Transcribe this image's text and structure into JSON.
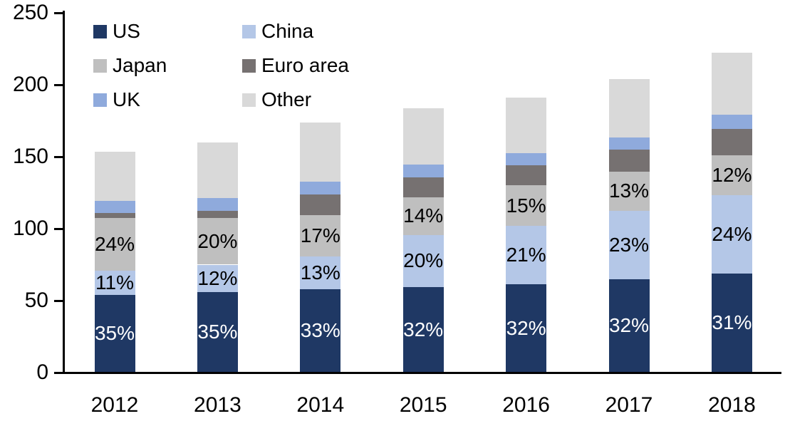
{
  "chart_data": {
    "type": "bar",
    "stacked": true,
    "title": "",
    "xlabel": "",
    "ylabel": "",
    "categories": [
      "2012",
      "2013",
      "2014",
      "2015",
      "2016",
      "2017",
      "2018"
    ],
    "series": [
      {
        "name": "US",
        "color": "#1F3864",
        "values": [
          54,
          56,
          58,
          59.5,
          61.5,
          65,
          69
        ],
        "segment_labels": [
          "35%",
          "35%",
          "33%",
          "32%",
          "32%",
          "32%",
          "31%"
        ],
        "label_color": "#FFFFFF"
      },
      {
        "name": "China",
        "color": "#B4C7E7",
        "values": [
          17,
          19,
          22.5,
          36,
          40.5,
          47.5,
          54.5
        ],
        "segment_labels": [
          "11%",
          "12%",
          "13%",
          "20%",
          "21%",
          "23%",
          "24%"
        ],
        "label_color": "#000000"
      },
      {
        "name": "Japan",
        "color": "#BFBFBF",
        "values": [
          36.5,
          32.5,
          29,
          26.5,
          28,
          27,
          27.5
        ],
        "segment_labels": [
          "24%",
          "20%",
          "17%",
          "14%",
          "15%",
          "13%",
          "12%"
        ],
        "label_color": "#000000"
      },
      {
        "name": "Euro area",
        "color": "#767171",
        "values": [
          3.5,
          5,
          14.5,
          13.5,
          14,
          15.5,
          18.5
        ],
        "segment_labels": null,
        "label_color": "#000000"
      },
      {
        "name": "UK",
        "color": "#8FAADC",
        "values": [
          8.5,
          9,
          8.5,
          9,
          8.5,
          8.5,
          9.5
        ],
        "segment_labels": null,
        "label_color": "#000000"
      },
      {
        "name": "Other",
        "color": "#D9D9D9",
        "values": [
          34,
          38.5,
          41.5,
          39,
          38.5,
          40.5,
          43.5
        ],
        "segment_labels": null,
        "label_color": "#000000"
      }
    ],
    "totals_approx": [
      153.5,
      160,
      174,
      183.5,
      191,
      204,
      222.5
    ],
    "ylim": [
      0,
      250
    ],
    "yticks": [
      "0",
      "50",
      "100",
      "150",
      "200",
      "250"
    ],
    "grid": false,
    "axis_color": "#000000",
    "background": "#FFFFFF",
    "legend_position": "top-left-inside",
    "legend_columns": [
      [
        "US",
        "Japan",
        "UK"
      ],
      [
        "China",
        "Euro area",
        "Other"
      ]
    ]
  }
}
